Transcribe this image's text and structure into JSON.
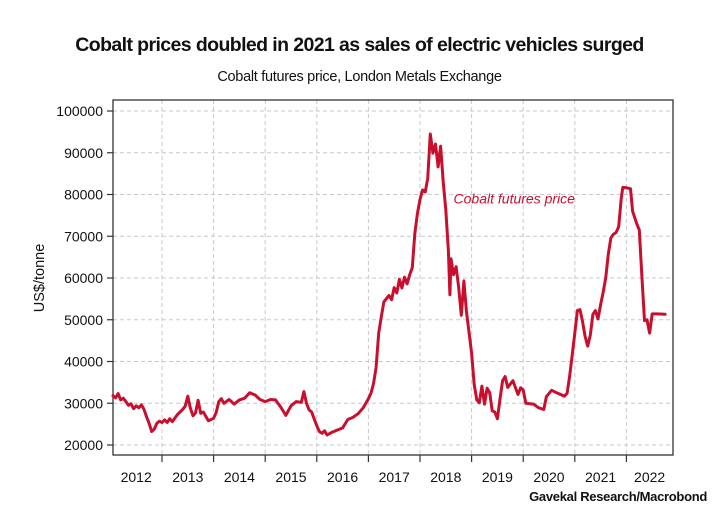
{
  "chart_data": {
    "type": "line",
    "title": "Cobalt prices doubled in 2021 as sales of electric vehicles surged",
    "subtitle": "Cobalt futures price, London Metals Exchange",
    "xlabel": "",
    "ylabel": "US$/tonne",
    "source": "Gavekal Research/Macrobond",
    "ylim": [
      18500,
      103000
    ],
    "xlim": [
      2012.0,
      2022.85
    ],
    "yticks": [
      20000,
      30000,
      40000,
      50000,
      60000,
      70000,
      80000,
      90000,
      100000
    ],
    "ytick_labels": [
      "20000",
      "30000",
      "40000",
      "50000",
      "60000",
      "70000",
      "80000",
      "90000",
      "100000"
    ],
    "xtick_positions": [
      2013,
      2014,
      2015,
      2016,
      2017,
      2018,
      2019,
      2020,
      2021,
      2022
    ],
    "xtick_labels": [
      "2012",
      "2013",
      "2014",
      "2015",
      "2016",
      "2017",
      "2018",
      "2019",
      "2020",
      "2021",
      "2022"
    ],
    "xtick_label_centers": [
      2012.5,
      2013.5,
      2014.5,
      2015.5,
      2016.5,
      2017.5,
      2018.5,
      2019.5,
      2020.5,
      2021.5,
      2022.45
    ],
    "grid": true,
    "legend": "inline-annotation",
    "series": [
      {
        "name": "Cobalt futures price",
        "color": "#c8102e",
        "points": [
          [
            2012.05,
            31800
          ],
          [
            2012.1,
            31300
          ],
          [
            2012.15,
            32300
          ],
          [
            2012.2,
            30800
          ],
          [
            2012.25,
            31200
          ],
          [
            2012.3,
            30400
          ],
          [
            2012.35,
            29500
          ],
          [
            2012.4,
            29900
          ],
          [
            2012.45,
            28700
          ],
          [
            2012.5,
            29400
          ],
          [
            2012.55,
            28900
          ],
          [
            2012.6,
            29600
          ],
          [
            2012.65,
            28600
          ],
          [
            2012.7,
            26800
          ],
          [
            2012.75,
            25200
          ],
          [
            2012.8,
            23200
          ],
          [
            2012.85,
            23800
          ],
          [
            2012.9,
            25200
          ],
          [
            2012.95,
            25700
          ],
          [
            2013.0,
            25400
          ],
          [
            2013.05,
            26000
          ],
          [
            2013.1,
            25400
          ],
          [
            2013.15,
            26300
          ],
          [
            2013.2,
            25600
          ],
          [
            2013.3,
            27300
          ],
          [
            2013.4,
            28500
          ],
          [
            2013.45,
            29300
          ],
          [
            2013.5,
            31700
          ],
          [
            2013.55,
            28800
          ],
          [
            2013.6,
            27000
          ],
          [
            2013.65,
            27700
          ],
          [
            2013.7,
            30700
          ],
          [
            2013.75,
            27600
          ],
          [
            2013.8,
            27900
          ],
          [
            2013.9,
            25800
          ],
          [
            2014.0,
            26400
          ],
          [
            2014.05,
            27800
          ],
          [
            2014.1,
            30400
          ],
          [
            2014.15,
            31100
          ],
          [
            2014.2,
            30000
          ],
          [
            2014.3,
            30900
          ],
          [
            2014.4,
            29800
          ],
          [
            2014.5,
            30800
          ],
          [
            2014.6,
            31200
          ],
          [
            2014.7,
            32500
          ],
          [
            2014.8,
            32000
          ],
          [
            2014.9,
            30900
          ],
          [
            2015.0,
            30400
          ],
          [
            2015.1,
            30900
          ],
          [
            2015.2,
            30800
          ],
          [
            2015.3,
            29100
          ],
          [
            2015.4,
            27100
          ],
          [
            2015.5,
            29400
          ],
          [
            2015.6,
            30400
          ],
          [
            2015.7,
            30200
          ],
          [
            2015.75,
            32800
          ],
          [
            2015.8,
            30000
          ],
          [
            2015.85,
            28400
          ],
          [
            2015.9,
            27900
          ],
          [
            2016.0,
            24600
          ],
          [
            2016.05,
            23200
          ],
          [
            2016.1,
            22800
          ],
          [
            2016.15,
            23400
          ],
          [
            2016.2,
            22400
          ],
          [
            2016.3,
            23100
          ],
          [
            2016.4,
            23600
          ],
          [
            2016.5,
            24100
          ],
          [
            2016.6,
            26100
          ],
          [
            2016.7,
            26600
          ],
          [
            2016.8,
            27500
          ],
          [
            2016.9,
            28900
          ],
          [
            2017.0,
            31100
          ],
          [
            2017.05,
            32400
          ],
          [
            2017.1,
            34800
          ],
          [
            2017.15,
            38600
          ],
          [
            2017.2,
            46800
          ],
          [
            2017.25,
            50700
          ],
          [
            2017.3,
            54300
          ],
          [
            2017.4,
            55800
          ],
          [
            2017.45,
            54800
          ],
          [
            2017.5,
            57700
          ],
          [
            2017.55,
            56400
          ],
          [
            2017.6,
            59700
          ],
          [
            2017.65,
            57600
          ],
          [
            2017.7,
            60200
          ],
          [
            2017.75,
            58600
          ],
          [
            2017.8,
            60800
          ],
          [
            2017.85,
            62500
          ],
          [
            2017.9,
            70600
          ],
          [
            2017.95,
            75400
          ],
          [
            2018.0,
            78800
          ],
          [
            2018.05,
            81100
          ],
          [
            2018.1,
            80600
          ],
          [
            2018.15,
            83800
          ],
          [
            2018.2,
            94500
          ],
          [
            2018.25,
            89900
          ],
          [
            2018.3,
            92100
          ],
          [
            2018.35,
            86600
          ],
          [
            2018.4,
            91600
          ],
          [
            2018.45,
            83100
          ],
          [
            2018.5,
            76300
          ],
          [
            2018.55,
            66500
          ],
          [
            2018.58,
            56000
          ],
          [
            2018.6,
            64600
          ],
          [
            2018.65,
            60800
          ],
          [
            2018.7,
            62700
          ],
          [
            2018.75,
            57700
          ],
          [
            2018.8,
            51100
          ],
          [
            2018.85,
            59300
          ],
          [
            2018.9,
            52100
          ],
          [
            2019.0,
            42000
          ],
          [
            2019.05,
            34500
          ],
          [
            2019.1,
            30800
          ],
          [
            2019.15,
            30100
          ],
          [
            2019.2,
            34100
          ],
          [
            2019.25,
            29800
          ],
          [
            2019.3,
            33600
          ],
          [
            2019.35,
            32500
          ],
          [
            2019.4,
            28200
          ],
          [
            2019.45,
            27900
          ],
          [
            2019.5,
            26300
          ],
          [
            2019.55,
            31000
          ],
          [
            2019.6,
            35400
          ],
          [
            2019.65,
            36400
          ],
          [
            2019.7,
            33800
          ],
          [
            2019.8,
            35400
          ],
          [
            2019.9,
            32100
          ],
          [
            2019.95,
            33700
          ],
          [
            2020.0,
            33200
          ],
          [
            2020.05,
            30000
          ],
          [
            2020.2,
            29800
          ],
          [
            2020.3,
            28900
          ],
          [
            2020.4,
            28500
          ],
          [
            2020.45,
            31600
          ],
          [
            2020.55,
            33100
          ],
          [
            2020.65,
            32500
          ],
          [
            2020.8,
            31700
          ],
          [
            2020.85,
            32400
          ],
          [
            2020.9,
            36400
          ],
          [
            2020.95,
            41500
          ],
          [
            2021.0,
            46800
          ],
          [
            2021.05,
            52200
          ],
          [
            2021.1,
            52400
          ],
          [
            2021.15,
            49600
          ],
          [
            2021.2,
            46000
          ],
          [
            2021.25,
            43700
          ],
          [
            2021.3,
            46300
          ],
          [
            2021.35,
            51300
          ],
          [
            2021.4,
            52200
          ],
          [
            2021.45,
            50200
          ],
          [
            2021.5,
            53600
          ],
          [
            2021.55,
            56600
          ],
          [
            2021.6,
            60200
          ],
          [
            2021.65,
            65700
          ],
          [
            2021.7,
            69600
          ],
          [
            2021.75,
            70500
          ],
          [
            2021.8,
            70900
          ],
          [
            2021.85,
            72300
          ],
          [
            2021.9,
            79000
          ],
          [
            2021.93,
            81700
          ],
          [
            2022.0,
            81600
          ],
          [
            2022.08,
            81400
          ],
          [
            2022.12,
            76000
          ],
          [
            2022.2,
            73000
          ],
          [
            2022.25,
            71500
          ],
          [
            2022.3,
            60300
          ],
          [
            2022.35,
            49800
          ],
          [
            2022.4,
            50000
          ],
          [
            2022.45,
            46800
          ],
          [
            2022.5,
            51400
          ],
          [
            2022.6,
            51400
          ],
          [
            2022.75,
            51300
          ]
        ]
      }
    ],
    "annotations": [
      {
        "text": "Cobalt futures price",
        "x": 2018.65,
        "y": 77800
      }
    ]
  }
}
